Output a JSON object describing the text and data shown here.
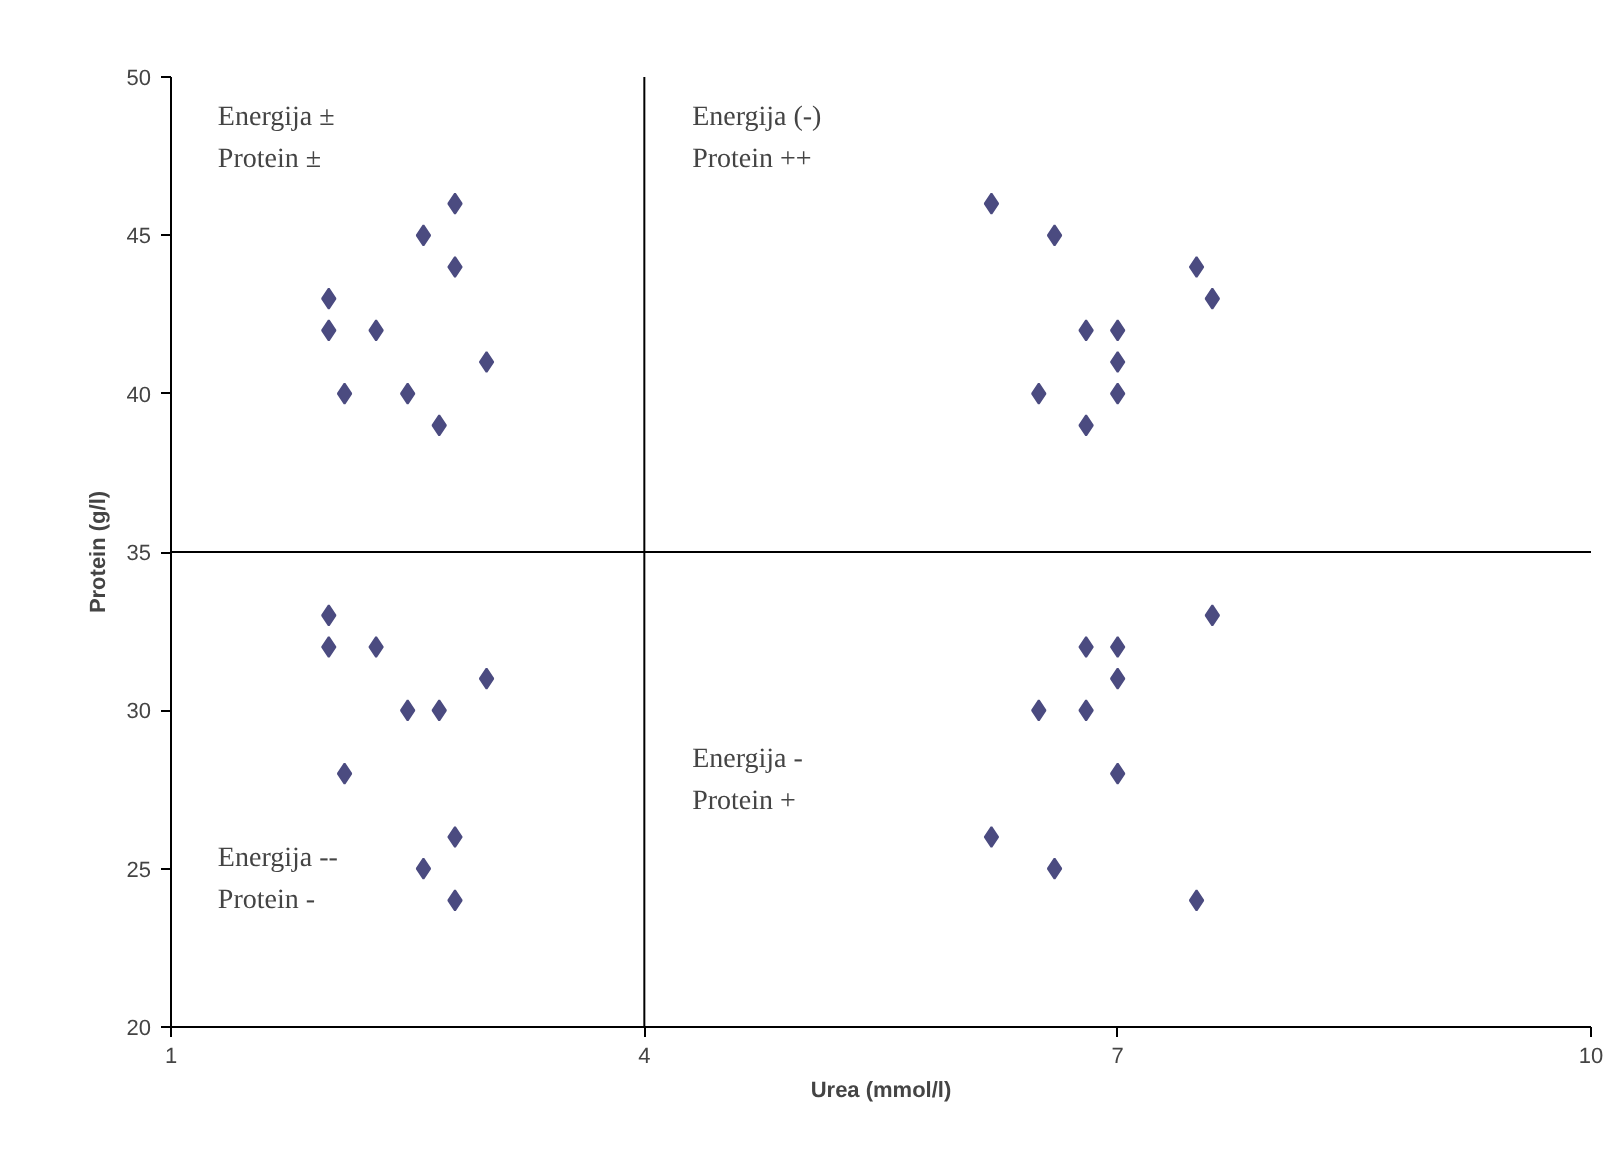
{
  "chart_data": {
    "type": "scatter",
    "xlabel": "Urea (mmol/l)",
    "ylabel": "Protein (g/l)",
    "xlim": [
      1,
      10
    ],
    "xticks": [
      1,
      4,
      7,
      10
    ],
    "ylim": [
      20,
      50
    ],
    "yticks": [
      20,
      25,
      30,
      35,
      40,
      45,
      50
    ],
    "marker": "diamond",
    "grid": false,
    "series": [
      {
        "color": "#4b4b80",
        "x": [
          2.8,
          2.6,
          2.8,
          2.0,
          2.0,
          2.3,
          2.1,
          2.5,
          3.0,
          2.7,
          6.2,
          6.6,
          7.5,
          7.6,
          6.8,
          7.0,
          7.0,
          6.5,
          7.0,
          6.8,
          2.0,
          2.0,
          2.3,
          3.0,
          2.5,
          2.7,
          2.1,
          2.8,
          2.6,
          2.8,
          7.6,
          6.8,
          7.0,
          7.0,
          6.5,
          6.8,
          7.0,
          6.2,
          6.6,
          7.5
        ],
        "values": [
          46,
          45,
          44,
          43,
          42,
          42,
          40,
          40,
          41,
          39,
          46,
          45,
          44,
          43,
          42,
          42,
          41,
          40,
          40,
          39,
          33,
          32,
          32,
          31,
          30,
          30,
          28,
          26,
          25,
          24,
          33,
          32,
          32,
          31,
          30,
          30,
          28,
          26,
          25,
          24
        ]
      }
    ],
    "ref_lines": [
      {
        "axis": "x",
        "value": 4,
        "color": "#000000"
      },
      {
        "axis": "y",
        "value": 35,
        "color": "#000000"
      }
    ],
    "annotations": [
      "Energija ±\nProtein ±",
      "Energija (-)\nProtein ++",
      "Energija -\nProtein +",
      "Energija --\nProtein -"
    ]
  }
}
